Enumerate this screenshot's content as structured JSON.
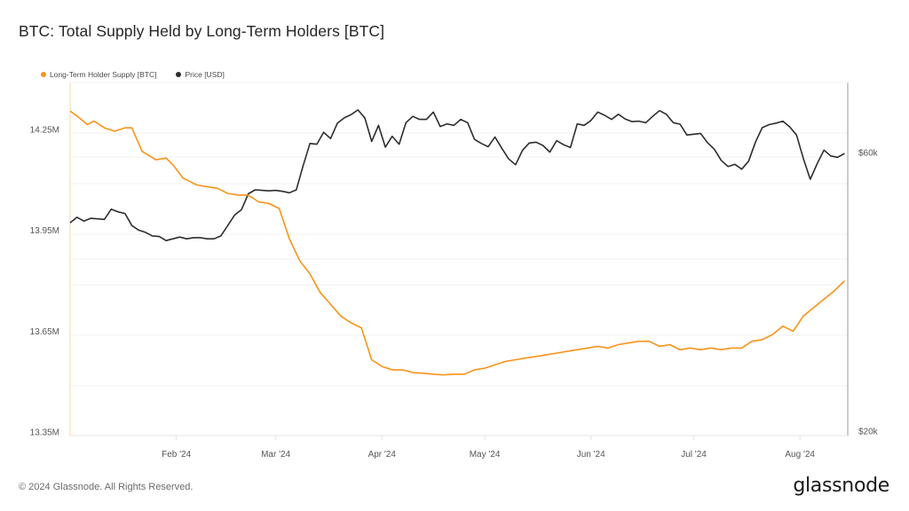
{
  "header": {
    "title": "BTC: Total Supply Held by Long-Term Holders [BTC]"
  },
  "legend": [
    {
      "label": "Long-Term Holder Supply [BTC]",
      "color": "#f7931a"
    },
    {
      "label": "Price [USD]",
      "color": "#2d2d2d"
    }
  ],
  "footer": {
    "copyright": "© 2024 Glassnode. All Rights Reserved.",
    "brand": "glassnode"
  },
  "chart_data": {
    "type": "line",
    "title": "BTC: Total Supply Held by Long-Term Holders [BTC]",
    "xlabel": "",
    "ylabel_left": "Long-Term Holder Supply [BTC]",
    "ylabel_right": "Price [USD]",
    "x_tick_labels": [
      "Feb '24",
      "Mar '24",
      "Apr '24",
      "May '24",
      "Jun '24",
      "Jul '24",
      "Aug '24"
    ],
    "y_left_tick_labels": [
      "14.25M",
      "13.95M",
      "13.65M",
      "13.35M"
    ],
    "y_left_ticks": [
      14250000,
      13950000,
      13650000,
      13350000
    ],
    "y_right_tick_labels": [
      "$60k",
      "$20k"
    ],
    "y_right_ticks": [
      60000,
      20000
    ],
    "y_right_scale": "log",
    "x_range": [
      "2024-01-01",
      "2024-08-13"
    ],
    "grid": true,
    "legend_position": "top-left",
    "series": [
      {
        "name": "Long-Term Holder Supply [BTC]",
        "axis": "left",
        "color": "#f7931a",
        "x_days": [
          0,
          2,
          5,
          7,
          10,
          13,
          16,
          18,
          21,
          25,
          28,
          30,
          33,
          35,
          37,
          40,
          43,
          46,
          49,
          52,
          55,
          58,
          61,
          64,
          67,
          70,
          73,
          76,
          79,
          82,
          85,
          88,
          91,
          94,
          97,
          100,
          103,
          106,
          109,
          112,
          115,
          118,
          121,
          124,
          127,
          130,
          133,
          136,
          139,
          142,
          145,
          148,
          151,
          154,
          157,
          160,
          163,
          166,
          169,
          172,
          175,
          178,
          181,
          184,
          187,
          190,
          193,
          196,
          199,
          202,
          205,
          208,
          211,
          214,
          217,
          220,
          223,
          226
        ],
        "values": [
          14305000.0,
          14290000.0,
          14265000.0,
          14275000.0,
          14255000.0,
          14245000.0,
          14255000.0,
          14255000.0,
          14185000.0,
          14160000.0,
          14165000.0,
          14145000.0,
          14105000.0,
          14095000.0,
          14085000.0,
          14080000.0,
          14075000.0,
          14060000.0,
          14055000.0,
          14055000.0,
          14035000.0,
          14030000.0,
          14015000.0,
          13925000.0,
          13860000.0,
          13820000.0,
          13765000.0,
          13730000.0,
          13695000.0,
          13675000.0,
          13660000.0,
          13565000.0,
          13545000.0,
          13535000.0,
          13535000.0,
          13527000.0,
          13525000.0,
          13522000.0,
          13520000.0,
          13522000.0,
          13522000.0,
          13535000.0,
          13540000.0,
          13550000.0,
          13560000.0,
          13565000.0,
          13570000.0,
          13575000.0,
          13580000.0,
          13585000.0,
          13590000.0,
          13595000.0,
          13600000.0,
          13605000.0,
          13600000.0,
          13610000.0,
          13615000.0,
          13620000.0,
          13620000.0,
          13605000.0,
          13610000.0,
          13595000.0,
          13600000.0,
          13595000.0,
          13600000.0,
          13595000.0,
          13600000.0,
          13600000.0,
          13620000.0,
          13625000.0,
          13640000.0,
          13665000.0,
          13650000.0,
          13695000.0,
          13720000.0,
          13745000.0,
          13770000.0,
          13800000.0
        ]
      },
      {
        "name": "Price [USD]",
        "axis": "right",
        "color": "#2d2d2d",
        "x_days": [
          0,
          2,
          4,
          6,
          8,
          10,
          12,
          14,
          16,
          18,
          20,
          22,
          24,
          26,
          28,
          30,
          32,
          34,
          36,
          38,
          40,
          42,
          44,
          46,
          48,
          50,
          52,
          54,
          56,
          58,
          60,
          62,
          64,
          66,
          68,
          70,
          72,
          74,
          76,
          78,
          80,
          82,
          84,
          86,
          88,
          90,
          92,
          94,
          96,
          98,
          100,
          102,
          104,
          106,
          108,
          110,
          112,
          114,
          116,
          118,
          120,
          122,
          124,
          126,
          128,
          130,
          132,
          134,
          136,
          138,
          140,
          142,
          144,
          146,
          148,
          150,
          152,
          154,
          156,
          158,
          160,
          162,
          164,
          166,
          168,
          170,
          172,
          174,
          176,
          178,
          180,
          182,
          184,
          186,
          188,
          190,
          192,
          194,
          196,
          198,
          200,
          202,
          204,
          206,
          208,
          210,
          212,
          214,
          216,
          218,
          220,
          222,
          224,
          226
        ],
        "values": [
          45500,
          46500,
          45800,
          46300,
          46200,
          46100,
          48000,
          47500,
          47200,
          45000,
          44200,
          43800,
          43200,
          43100,
          42400,
          42700,
          43000,
          42700,
          42900,
          42900,
          42700,
          42700,
          43200,
          45000,
          46900,
          47900,
          51000,
          51800,
          51700,
          51600,
          51700,
          51500,
          51200,
          51800,
          57000,
          62200,
          62000,
          65000,
          63400,
          67400,
          68800,
          69700,
          71000,
          68800,
          62700,
          66800,
          61300,
          64000,
          62000,
          67500,
          69200,
          68400,
          68400,
          70400,
          66500,
          67200,
          66800,
          68400,
          67500,
          63200,
          62200,
          61400,
          63800,
          61000,
          58500,
          57200,
          60500,
          62300,
          62500,
          61700,
          60100,
          62900,
          61900,
          61200,
          67200,
          66800,
          68100,
          70400,
          69500,
          68400,
          69800,
          68500,
          67800,
          67900,
          67500,
          69200,
          70800,
          69800,
          67500,
          67100,
          64300,
          64500,
          64700,
          62400,
          60800,
          58200,
          56800,
          57300,
          56200,
          58000,
          62500,
          66200,
          67000,
          67400,
          67900,
          66400,
          64300,
          58600,
          54000,
          57400,
          60600,
          59200,
          58900,
          59800
        ]
      }
    ]
  }
}
